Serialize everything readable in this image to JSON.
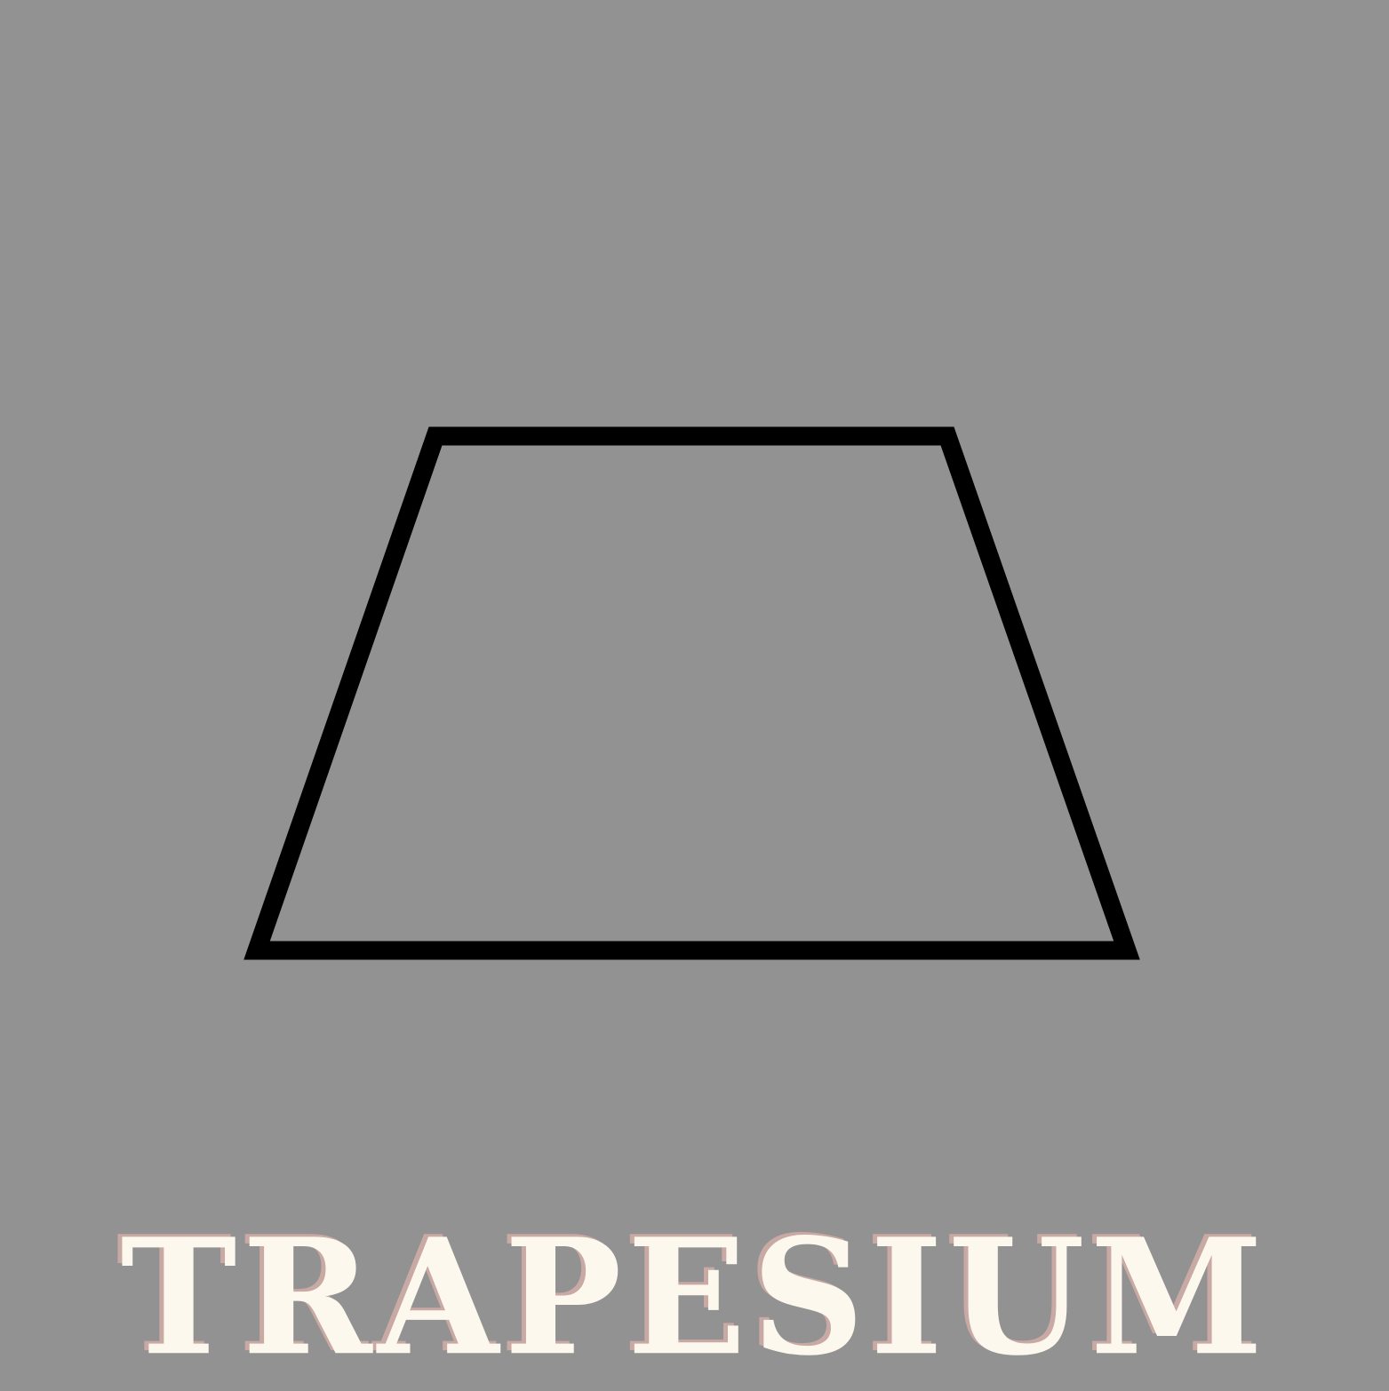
{
  "title": "TRAPESIUM",
  "colors": {
    "background": "#929292",
    "outline": "#000000",
    "title_fill": "#fdf8ee",
    "title_shadow": "#c9a9a4"
  }
}
